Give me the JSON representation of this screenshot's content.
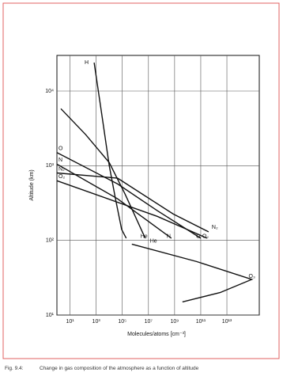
{
  "chart_data": {
    "type": "line",
    "log_x": true,
    "log_y": true,
    "grid": true,
    "xlabel": "Molecules/atoms [cm⁻³]",
    "ylabel": "Altitude (km)",
    "xlim": [
      1,
      3000000000000000.0
    ],
    "ylim": [
      10,
      30000
    ],
    "xticks": [
      {
        "value": 10,
        "label": "10¹"
      },
      {
        "value": 1000,
        "label": "10³"
      },
      {
        "value": 100000,
        "label": "10⁵"
      },
      {
        "value": 10000000,
        "label": "10⁷"
      },
      {
        "value": 1000000000,
        "label": "10⁹"
      },
      {
        "value": 100000000000,
        "label": "10¹¹"
      },
      {
        "value": 10000000000000,
        "label": "10¹³"
      }
    ],
    "yticks": [
      {
        "value": 10,
        "label": "10¹"
      },
      {
        "value": 100,
        "label": "10²"
      },
      {
        "value": 1000,
        "label": "10³"
      },
      {
        "value": 10000,
        "label": "10⁴"
      }
    ],
    "series": [
      {
        "name": "H",
        "color": "#111111",
        "x": [
          700,
          3000,
          10000,
          30000,
          90000,
          200000
        ],
        "values": [
          24000,
          4300,
          1000,
          360,
          140,
          107
        ]
      },
      {
        "name": "He",
        "color": "#111111",
        "x": [
          2,
          160,
          10000,
          160000,
          5700000
        ],
        "values": [
          5800,
          2600,
          1100,
          420,
          107
        ]
      },
      {
        "name": "O",
        "color": "#111111",
        "x": [
          1,
          44000,
          47000000,
          100000000000
        ],
        "values": [
          1500,
          570,
          250,
          107
        ]
      },
      {
        "name": "N",
        "color": "#111111",
        "x": [
          1,
          44000,
          570000000
        ],
        "values": [
          1050,
          360,
          107
        ]
      },
      {
        "name": "N₂",
        "color": "#111111",
        "x": [
          1,
          44000,
          790000000,
          400000000000
        ],
        "values": [
          800,
          680,
          225,
          130
        ]
      },
      {
        "name": "O₂",
        "color": "#111111",
        "x": [
          1,
          47000000,
          300000000000
        ],
        "values": [
          630,
          210,
          107
        ]
      },
      {
        "name": "O₃",
        "color": "#111111",
        "x": [
          540000,
          50000000000,
          800000000000000,
          3000000000000,
          4000000000
        ],
        "values": [
          89,
          52,
          30,
          20,
          15
        ]
      }
    ]
  },
  "figure": {
    "number": "Fig. 9.4:",
    "caption": "Change in gas composition of the atmosphere as a function of altitude"
  }
}
